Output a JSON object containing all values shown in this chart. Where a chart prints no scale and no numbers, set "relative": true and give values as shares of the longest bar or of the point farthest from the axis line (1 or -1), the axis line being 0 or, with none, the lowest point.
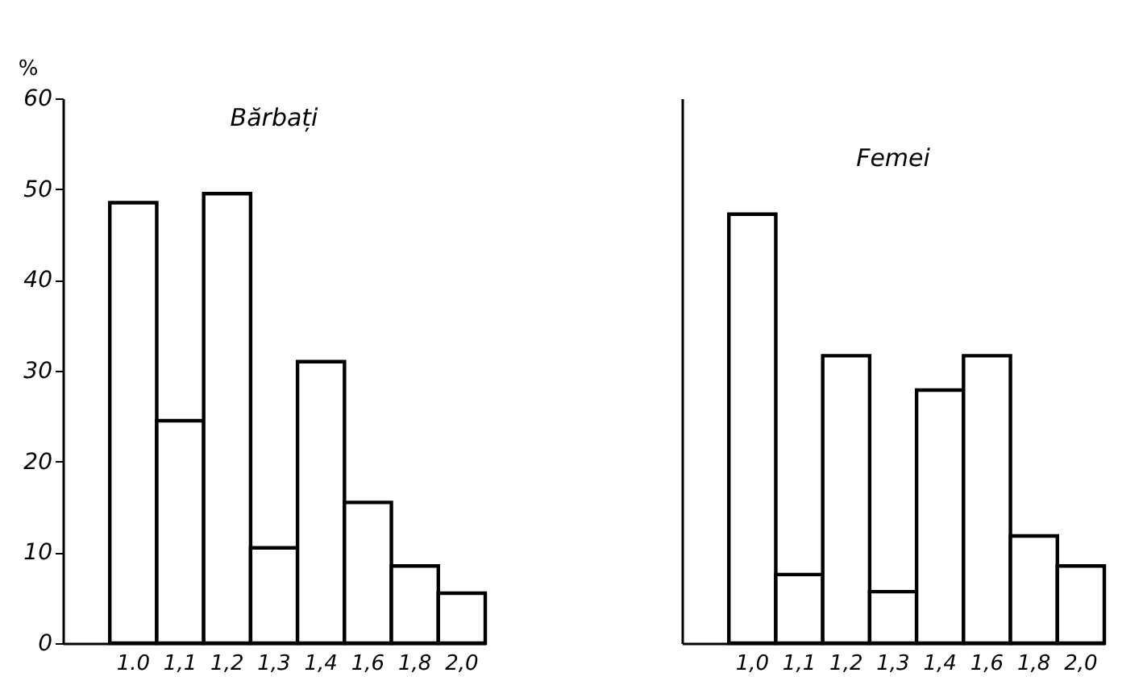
{
  "chart_data": [
    {
      "type": "bar",
      "title": "Bărbați",
      "ylabel": "%",
      "categories": [
        "1.0",
        "1,1",
        "1,2",
        "1,3",
        "1,4",
        "1,6",
        "1,8",
        "2,0"
      ],
      "values": [
        48.5,
        24.5,
        49.5,
        10.5,
        31,
        15.5,
        8.5,
        5.5
      ],
      "color": "#ffffff",
      "ylim": [
        0,
        60
      ],
      "yticks": [
        0,
        10,
        20,
        30,
        40,
        50,
        60
      ],
      "grid": false
    },
    {
      "type": "bar",
      "title": "Femei",
      "relative": true,
      "categories": [
        "1,0",
        "1,1",
        "1,2",
        "1,3",
        "1,4",
        "1,6",
        "1,8",
        "2,0"
      ],
      "values": [
        1,
        0.16,
        0.67,
        0.12,
        0.59,
        0.67,
        0.25,
        0.18
      ],
      "color": "#ffffff",
      "grid": false
    }
  ]
}
